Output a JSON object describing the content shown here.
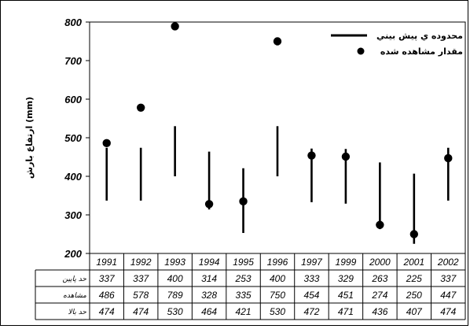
{
  "chart_data": {
    "type": "scatter",
    "title": "",
    "xlabel": "",
    "ylabel": "ارتفاع بارش (mm)",
    "ylim": [
      200,
      800
    ],
    "yticks": [
      200,
      300,
      400,
      500,
      600,
      700,
      800
    ],
    "grid": false,
    "legend_position": "top-right",
    "categories": [
      "1991",
      "1992",
      "1993",
      "1994",
      "1995",
      "1996",
      "1997",
      "1999",
      "2000",
      "2001",
      "2002"
    ],
    "series": [
      {
        "name": "محدوده ي پيش بيني",
        "kind": "range",
        "lower": [
          337,
          337,
          400,
          314,
          253,
          400,
          333,
          329,
          263,
          225,
          337
        ],
        "upper": [
          474,
          474,
          530,
          464,
          421,
          530,
          472,
          471,
          436,
          407,
          474
        ]
      },
      {
        "name": "مقدار مشاهده شده",
        "kind": "points",
        "values": [
          486,
          578,
          789,
          328,
          335,
          750,
          454,
          451,
          274,
          250,
          447
        ]
      }
    ],
    "table": {
      "rows": [
        {
          "label": "حد پايين",
          "key": "lower"
        },
        {
          "label": "مشاهده",
          "key": "observed"
        },
        {
          "label": "حد بالا",
          "key": "upper"
        }
      ]
    }
  }
}
